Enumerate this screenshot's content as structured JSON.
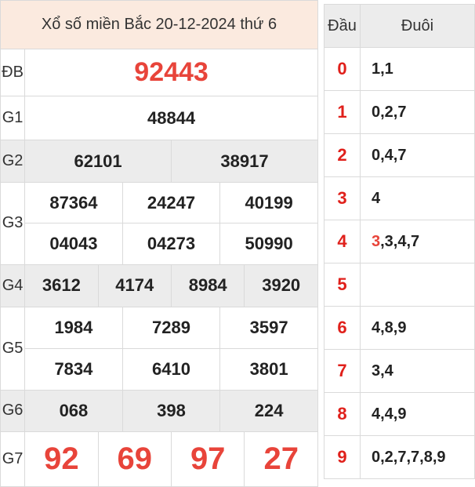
{
  "header": {
    "title": "Xổ số miền Bắc 20-12-2024 thứ 6"
  },
  "prizes": {
    "db": {
      "label": "ĐB",
      "values": [
        "92443"
      ]
    },
    "g1": {
      "label": "G1",
      "values": [
        "48844"
      ]
    },
    "g2": {
      "label": "G2",
      "values": [
        "62101",
        "38917"
      ]
    },
    "g3": {
      "label": "G3",
      "values": [
        "87364",
        "24247",
        "40199",
        "04043",
        "04273",
        "50990"
      ]
    },
    "g4": {
      "label": "G4",
      "values": [
        "3612",
        "4174",
        "8984",
        "3920"
      ]
    },
    "g5": {
      "label": "G5",
      "values": [
        "1984",
        "7289",
        "3597",
        "7834",
        "6410",
        "3801"
      ]
    },
    "g6": {
      "label": "G6",
      "values": [
        "068",
        "398",
        "224"
      ]
    },
    "g7": {
      "label": "G7",
      "values": [
        "92",
        "69",
        "97",
        "27"
      ]
    }
  },
  "loto": {
    "dau_header": "Đầu",
    "duoi_header": "Đuôi",
    "rows": [
      {
        "dau": "0",
        "duoi": "1,1"
      },
      {
        "dau": "1",
        "duoi": "0,2,7"
      },
      {
        "dau": "2",
        "duoi": "0,4,7"
      },
      {
        "dau": "3",
        "duoi": "4"
      },
      {
        "dau": "4",
        "duoi_highlight": "3",
        "duoi_rest": ",3,4,7"
      },
      {
        "dau": "5",
        "duoi": ""
      },
      {
        "dau": "6",
        "duoi": "4,8,9"
      },
      {
        "dau": "7",
        "duoi": "3,4"
      },
      {
        "dau": "8",
        "duoi": "4,4,9"
      },
      {
        "dau": "9",
        "duoi": "0,2,7,7,8,9"
      }
    ]
  },
  "colors": {
    "accent_red": "#e8443a",
    "header_bg": "#fbeadf",
    "stripe_gray": "#ececec"
  }
}
